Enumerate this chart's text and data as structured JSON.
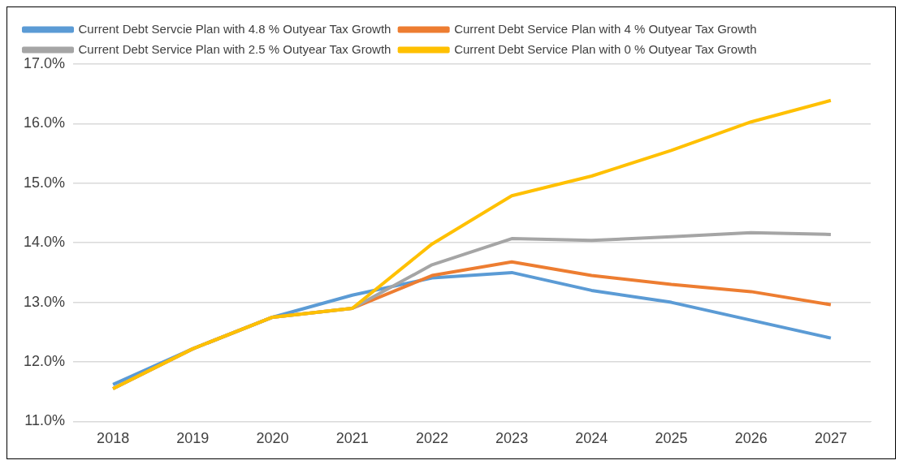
{
  "chart_data": {
    "type": "line",
    "categories": [
      "2018",
      "2019",
      "2020",
      "2021",
      "2022",
      "2023",
      "2024",
      "2025",
      "2026",
      "2027"
    ],
    "series": [
      {
        "name": "Current Debt Servcie Plan with 4.8 % Outyear Tax Growth",
        "color": "#5b9bd5",
        "values": [
          11.62,
          12.22,
          12.75,
          13.12,
          13.41,
          13.5,
          13.2,
          13.0,
          12.7,
          12.4
        ]
      },
      {
        "name": "Current Debt Service Plan with 4 % Outyear Tax Growth",
        "color": "#ed7d31",
        "values": [
          11.55,
          12.22,
          12.75,
          12.9,
          13.45,
          13.68,
          13.45,
          13.3,
          13.18,
          12.96
        ]
      },
      {
        "name": "Current Debt Service Plan with 2.5 % Outyear Tax Growth",
        "color": "#a5a5a5",
        "values": [
          11.55,
          12.22,
          12.75,
          12.9,
          13.63,
          14.07,
          14.04,
          14.1,
          14.17,
          14.14
        ]
      },
      {
        "name": "Current Debt Service Plan with 0 % Outyear Tax Growth",
        "color": "#ffc000",
        "values": [
          11.55,
          12.22,
          12.75,
          12.9,
          13.98,
          14.79,
          15.12,
          15.55,
          16.03,
          16.39
        ]
      }
    ],
    "ylim": [
      11,
      17
    ],
    "yticks": [
      {
        "value": 11,
        "label": "11.0%"
      },
      {
        "value": 12,
        "label": "12.0%"
      },
      {
        "value": 13,
        "label": "13.0%"
      },
      {
        "value": 14,
        "label": "14.0%"
      },
      {
        "value": 15,
        "label": "15.0%"
      },
      {
        "value": 16,
        "label": "16.0%"
      },
      {
        "value": 17,
        "label": "17.0%"
      }
    ],
    "grid": "y",
    "legend": "top left",
    "marker": "none",
    "line_style": "solid"
  }
}
